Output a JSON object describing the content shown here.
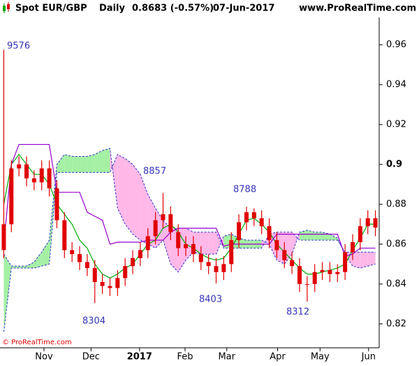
{
  "chart_data": {
    "type": "candlestick",
    "symbol": "Spot EUR/GBP",
    "period": "Daily",
    "price": "0.8683 (-0.57%)",
    "date": "07-Jun-2017",
    "site": "www.ProRealTime.com",
    "footer": "© ProRealTime.com",
    "annotations": [
      "9576",
      "8857",
      "8788",
      "8403",
      "8304",
      "8312"
    ],
    "color": "#e00000",
    "open": [
      0.857,
      0.87,
      0.898,
      0.9,
      0.893,
      0.891,
      0.898,
      0.888,
      0.872,
      0.857,
      0.855,
      0.851,
      0.848,
      0.841,
      0.839,
      0.838,
      0.843,
      0.849,
      0.853,
      0.857,
      0.864,
      0.872,
      0.875,
      0.866,
      0.858,
      0.86,
      0.855,
      0.851,
      0.849,
      0.846,
      0.85,
      0.862,
      0.871,
      0.876,
      0.873,
      0.869,
      0.862,
      0.857,
      0.852,
      0.849,
      0.84,
      0.84,
      0.846,
      0.847,
      0.845,
      0.846,
      0.856,
      0.861,
      0.869,
      0.873
    ],
    "high": [
      0.9576,
      0.902,
      0.904,
      0.904,
      0.897,
      0.902,
      0.902,
      0.892,
      0.876,
      0.861,
      0.859,
      0.855,
      0.852,
      0.845,
      0.843,
      0.847,
      0.853,
      0.857,
      0.861,
      0.868,
      0.876,
      0.8857,
      0.879,
      0.87,
      0.864,
      0.864,
      0.859,
      0.855,
      0.853,
      0.854,
      0.866,
      0.875,
      0.8788,
      0.878,
      0.877,
      0.873,
      0.866,
      0.861,
      0.856,
      0.853,
      0.844,
      0.85,
      0.851,
      0.851,
      0.85,
      0.86,
      0.865,
      0.873,
      0.877,
      0.877
    ],
    "low": [
      0.853,
      0.866,
      0.894,
      0.889,
      0.887,
      0.887,
      0.884,
      0.868,
      0.853,
      0.851,
      0.847,
      0.844,
      0.8304,
      0.835,
      0.834,
      0.834,
      0.839,
      0.845,
      0.849,
      0.853,
      0.86,
      0.868,
      0.862,
      0.854,
      0.854,
      0.851,
      0.847,
      0.845,
      0.8403,
      0.842,
      0.846,
      0.858,
      0.867,
      0.869,
      0.865,
      0.858,
      0.853,
      0.848,
      0.845,
      0.836,
      0.8312,
      0.836,
      0.842,
      0.841,
      0.841,
      0.842,
      0.852,
      0.857,
      0.865,
      0.864
    ],
    "close": [
      0.87,
      0.898,
      0.9,
      0.893,
      0.891,
      0.898,
      0.888,
      0.872,
      0.857,
      0.855,
      0.851,
      0.848,
      0.841,
      0.839,
      0.838,
      0.843,
      0.849,
      0.853,
      0.857,
      0.864,
      0.872,
      0.875,
      0.866,
      0.858,
      0.86,
      0.855,
      0.851,
      0.849,
      0.846,
      0.85,
      0.862,
      0.871,
      0.876,
      0.873,
      0.869,
      0.862,
      0.857,
      0.852,
      0.849,
      0.84,
      0.84,
      0.846,
      0.847,
      0.845,
      0.846,
      0.856,
      0.861,
      0.869,
      0.873,
      0.8683
    ],
    "lines": [
      {
        "color": "#00aa00",
        "values": [
          0.88,
          0.9,
          0.905,
          0.9,
          0.895,
          0.895,
          0.89,
          0.88,
          0.875,
          0.87,
          0.862,
          0.858,
          0.85,
          0.845,
          0.843,
          0.845,
          0.848,
          0.85,
          0.855,
          0.86,
          0.862,
          0.868,
          0.87,
          0.866,
          0.86,
          0.858,
          0.855,
          0.853,
          0.852,
          0.853,
          0.858,
          0.865,
          0.872,
          0.873,
          0.87,
          0.866,
          0.86,
          0.856,
          0.852,
          0.848,
          0.845,
          0.845,
          0.846,
          0.847,
          0.848,
          0.85,
          0.857,
          0.863,
          0.87,
          0.87
        ]
      },
      {
        "color": "#9900cc",
        "values": [
          0.86,
          0.9,
          0.91,
          0.91,
          0.91,
          0.91,
          0.91,
          0.886,
          0.886,
          0.886,
          0.886,
          0.876,
          0.874,
          0.872,
          0.86,
          0.861,
          0.861,
          0.861,
          0.861,
          0.862,
          0.862,
          0.862,
          0.866,
          0.868,
          0.868,
          0.868,
          0.868,
          0.868,
          0.868,
          0.859,
          0.86,
          0.86,
          0.86,
          0.86,
          0.86,
          0.86,
          0.865,
          0.865,
          0.865,
          0.865,
          0.865,
          0.865,
          0.865,
          0.865,
          0.865,
          0.854,
          0.855,
          0.858,
          0.858,
          0.858
        ]
      }
    ],
    "cloud": {
      "line_color": "#3333cc",
      "up_color": "#a4f0a4",
      "down_color": "#ffb8e8",
      "span_a": [
        0.855,
        0.849,
        0.849,
        0.849,
        0.851,
        0.856,
        0.862,
        0.9,
        0.905,
        0.904,
        0.904,
        0.904,
        0.905,
        0.907,
        0.908,
        0.878,
        0.87,
        0.865,
        0.862,
        0.86,
        0.858,
        0.862,
        0.85,
        0.846,
        0.852,
        0.856,
        0.855,
        0.855,
        0.855,
        0.864,
        0.865,
        0.863,
        0.862,
        0.862,
        0.862,
        0.86,
        0.852,
        0.85,
        0.855,
        0.866,
        0.867,
        0.866,
        0.866,
        0.865,
        0.863,
        0.855,
        0.849,
        0.848,
        0.849,
        0.85
      ],
      "span_b": [
        0.816,
        0.848,
        0.848,
        0.848,
        0.848,
        0.849,
        0.85,
        0.896,
        0.896,
        0.896,
        0.896,
        0.896,
        0.896,
        0.896,
        0.896,
        0.905,
        0.903,
        0.9,
        0.895,
        0.885,
        0.878,
        0.872,
        0.868,
        0.868,
        0.868,
        0.866,
        0.866,
        0.866,
        0.866,
        0.858,
        0.858,
        0.858,
        0.858,
        0.858,
        0.858,
        0.865,
        0.866,
        0.866,
        0.866,
        0.862,
        0.862,
        0.862,
        0.862,
        0.862,
        0.862,
        0.856,
        0.856,
        0.856,
        0.856,
        0.856
      ]
    },
    "xlim": [
      0,
      50
    ],
    "xticks": [
      {
        "value": 5.8,
        "label": "Nov"
      },
      {
        "value": 12,
        "label": "Dec"
      },
      {
        "value": 18.4,
        "label": "2017"
      },
      {
        "value": 24.4,
        "label": "Feb"
      },
      {
        "value": 29.9,
        "label": "Mar"
      },
      {
        "value": 36.6,
        "label": "Apr"
      },
      {
        "value": 42.2,
        "label": "May"
      },
      {
        "value": 48.6,
        "label": "Jun"
      }
    ],
    "ylim": [
      0.808,
      0.9737
    ],
    "yticks": [
      0.82,
      0.84,
      0.86,
      0.88,
      0.9,
      0.92,
      0.94,
      0.96
    ]
  }
}
